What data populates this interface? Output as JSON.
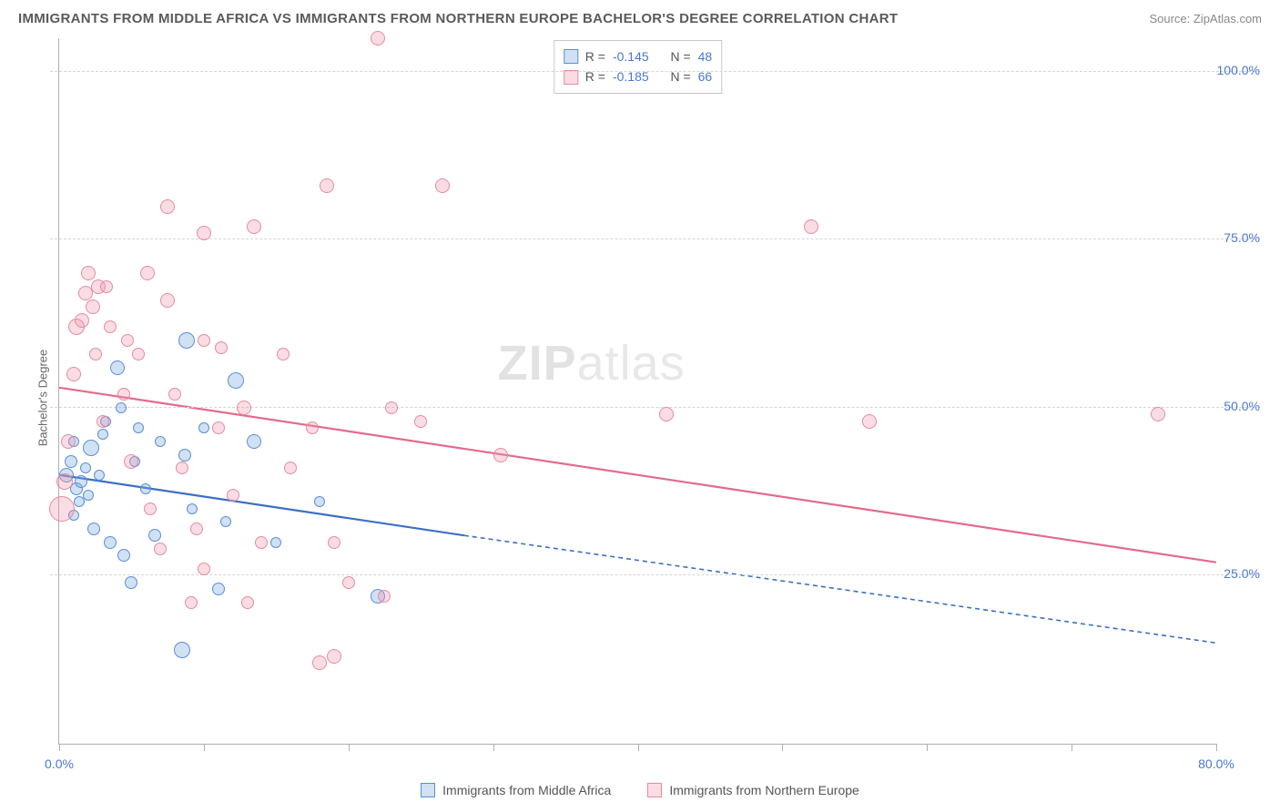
{
  "title": "IMMIGRANTS FROM MIDDLE AFRICA VS IMMIGRANTS FROM NORTHERN EUROPE BACHELOR'S DEGREE CORRELATION CHART",
  "source": "Source: ZipAtlas.com",
  "ylabel": "Bachelor's Degree",
  "watermark_a": "ZIP",
  "watermark_b": "atlas",
  "chart": {
    "type": "scatter",
    "xlim": [
      0,
      80
    ],
    "ylim": [
      0,
      105
    ],
    "background_color": "#ffffff",
    "grid_color": "#d5d5d5",
    "axis_color": "#b0b0b0",
    "ytick_values": [
      25,
      50,
      75,
      100
    ],
    "ytick_labels": [
      "25.0%",
      "50.0%",
      "75.0%",
      "100.0%"
    ],
    "xtick_values": [
      0,
      10,
      20,
      30,
      40,
      50,
      60,
      70,
      80
    ],
    "xtick_labels": {
      "0": "0.0%",
      "80": "80.0%"
    },
    "tick_label_color": "#4a77d4"
  },
  "series": [
    {
      "id": "middle_africa",
      "label": "Immigrants from Middle Africa",
      "fill": "rgba(124,168,224,0.35)",
      "stroke": "#5a8ed6",
      "line_color": "#3b6fc4",
      "R": "-0.145",
      "N": "48",
      "trend": {
        "x1": 0,
        "y1": 40,
        "x2": 28,
        "y2": 31,
        "dash_x2": 80,
        "dash_y2": 15
      },
      "points": [
        {
          "x": 0.8,
          "y": 42,
          "r": 7
        },
        {
          "x": 0.5,
          "y": 40,
          "r": 8
        },
        {
          "x": 1.0,
          "y": 45,
          "r": 6
        },
        {
          "x": 1.2,
          "y": 38,
          "r": 7
        },
        {
          "x": 1.4,
          "y": 36,
          "r": 6
        },
        {
          "x": 1.0,
          "y": 34,
          "r": 6
        },
        {
          "x": 1.5,
          "y": 39,
          "r": 7
        },
        {
          "x": 1.8,
          "y": 41,
          "r": 6
        },
        {
          "x": 2.0,
          "y": 37,
          "r": 6
        },
        {
          "x": 2.2,
          "y": 44,
          "r": 9
        },
        {
          "x": 2.4,
          "y": 32,
          "r": 7
        },
        {
          "x": 2.8,
          "y": 40,
          "r": 6
        },
        {
          "x": 3.0,
          "y": 46,
          "r": 6
        },
        {
          "x": 3.2,
          "y": 48,
          "r": 6
        },
        {
          "x": 3.5,
          "y": 30,
          "r": 7
        },
        {
          "x": 4.0,
          "y": 56,
          "r": 8
        },
        {
          "x": 4.3,
          "y": 50,
          "r": 6
        },
        {
          "x": 4.5,
          "y": 28,
          "r": 7
        },
        {
          "x": 5.0,
          "y": 24,
          "r": 7
        },
        {
          "x": 5.2,
          "y": 42,
          "r": 6
        },
        {
          "x": 5.5,
          "y": 47,
          "r": 6
        },
        {
          "x": 6.0,
          "y": 38,
          "r": 6
        },
        {
          "x": 6.6,
          "y": 31,
          "r": 7
        },
        {
          "x": 7.0,
          "y": 45,
          "r": 6
        },
        {
          "x": 8.5,
          "y": 14,
          "r": 9
        },
        {
          "x": 8.8,
          "y": 60,
          "r": 9
        },
        {
          "x": 8.7,
          "y": 43,
          "r": 7
        },
        {
          "x": 9.2,
          "y": 35,
          "r": 6
        },
        {
          "x": 10.0,
          "y": 47,
          "r": 6
        },
        {
          "x": 11.0,
          "y": 23,
          "r": 7
        },
        {
          "x": 11.5,
          "y": 33,
          "r": 6
        },
        {
          "x": 12.2,
          "y": 54,
          "r": 9
        },
        {
          "x": 13.5,
          "y": 45,
          "r": 8
        },
        {
          "x": 15.0,
          "y": 30,
          "r": 6
        },
        {
          "x": 18.0,
          "y": 36,
          "r": 6
        },
        {
          "x": 22.0,
          "y": 22,
          "r": 8
        }
      ]
    },
    {
      "id": "northern_europe",
      "label": "Immigrants from Northern Europe",
      "fill": "rgba(240,150,170,0.32)",
      "stroke": "#e58ba0",
      "line_color": "#e26b8b",
      "R": "-0.185",
      "N": "66",
      "trend": {
        "x1": 0,
        "y1": 53,
        "x2": 80,
        "y2": 27,
        "dash_x2": 80,
        "dash_y2": 27
      },
      "points": [
        {
          "x": 0.2,
          "y": 35,
          "r": 14
        },
        {
          "x": 0.4,
          "y": 39,
          "r": 9
        },
        {
          "x": 0.6,
          "y": 45,
          "r": 8
        },
        {
          "x": 1.0,
          "y": 55,
          "r": 8
        },
        {
          "x": 1.2,
          "y": 62,
          "r": 9
        },
        {
          "x": 1.6,
          "y": 63,
          "r": 8
        },
        {
          "x": 1.8,
          "y": 67,
          "r": 8
        },
        {
          "x": 2.0,
          "y": 70,
          "r": 8
        },
        {
          "x": 2.3,
          "y": 65,
          "r": 8
        },
        {
          "x": 2.5,
          "y": 58,
          "r": 7
        },
        {
          "x": 2.7,
          "y": 68,
          "r": 8
        },
        {
          "x": 3.0,
          "y": 48,
          "r": 7
        },
        {
          "x": 3.3,
          "y": 68,
          "r": 7
        },
        {
          "x": 3.5,
          "y": 62,
          "r": 7
        },
        {
          "x": 4.5,
          "y": 52,
          "r": 7
        },
        {
          "x": 4.7,
          "y": 60,
          "r": 7
        },
        {
          "x": 5.0,
          "y": 42,
          "r": 8
        },
        {
          "x": 5.5,
          "y": 58,
          "r": 7
        },
        {
          "x": 6.1,
          "y": 70,
          "r": 8
        },
        {
          "x": 6.3,
          "y": 35,
          "r": 7
        },
        {
          "x": 7.0,
          "y": 29,
          "r": 7
        },
        {
          "x": 7.5,
          "y": 80,
          "r": 8
        },
        {
          "x": 7.5,
          "y": 66,
          "r": 8
        },
        {
          "x": 8.0,
          "y": 52,
          "r": 7
        },
        {
          "x": 8.5,
          "y": 41,
          "r": 7
        },
        {
          "x": 9.1,
          "y": 21,
          "r": 7
        },
        {
          "x": 9.5,
          "y": 32,
          "r": 7
        },
        {
          "x": 10.0,
          "y": 60,
          "r": 7
        },
        {
          "x": 10.0,
          "y": 26,
          "r": 7
        },
        {
          "x": 10.0,
          "y": 76,
          "r": 8
        },
        {
          "x": 11.0,
          "y": 47,
          "r": 7
        },
        {
          "x": 11.2,
          "y": 59,
          "r": 7
        },
        {
          "x": 12.0,
          "y": 37,
          "r": 7
        },
        {
          "x": 12.8,
          "y": 50,
          "r": 8
        },
        {
          "x": 13.0,
          "y": 21,
          "r": 7
        },
        {
          "x": 14.0,
          "y": 30,
          "r": 7
        },
        {
          "x": 15.5,
          "y": 58,
          "r": 7
        },
        {
          "x": 16.0,
          "y": 41,
          "r": 7
        },
        {
          "x": 17.5,
          "y": 47,
          "r": 7
        },
        {
          "x": 13.5,
          "y": 77,
          "r": 8
        },
        {
          "x": 18.0,
          "y": 12,
          "r": 8
        },
        {
          "x": 18.5,
          "y": 83,
          "r": 8
        },
        {
          "x": 19.0,
          "y": 30,
          "r": 7
        },
        {
          "x": 19.0,
          "y": 13,
          "r": 8
        },
        {
          "x": 20.0,
          "y": 24,
          "r": 7
        },
        {
          "x": 22.0,
          "y": 105,
          "r": 8
        },
        {
          "x": 22.5,
          "y": 22,
          "r": 7
        },
        {
          "x": 23.0,
          "y": 50,
          "r": 7
        },
        {
          "x": 25.0,
          "y": 48,
          "r": 7
        },
        {
          "x": 26.5,
          "y": 83,
          "r": 8
        },
        {
          "x": 30.5,
          "y": 43,
          "r": 8
        },
        {
          "x": 42.0,
          "y": 49,
          "r": 8
        },
        {
          "x": 52.0,
          "y": 77,
          "r": 8
        },
        {
          "x": 56.0,
          "y": 48,
          "r": 8
        },
        {
          "x": 76.0,
          "y": 49,
          "r": 8
        }
      ]
    }
  ],
  "legend_labels": {
    "r": "R =",
    "n": "N ="
  }
}
